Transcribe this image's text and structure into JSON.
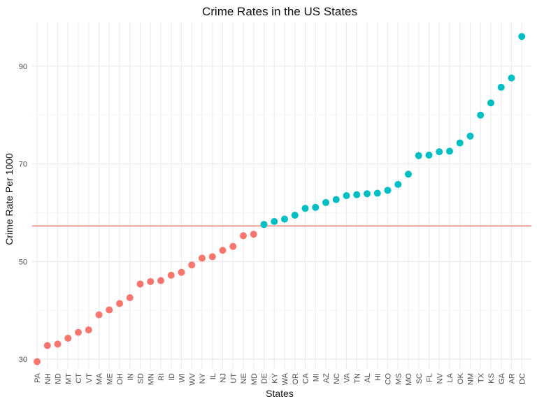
{
  "chart_data": {
    "type": "scatter",
    "title": "Crime Rates in the US States",
    "xlabel": "States",
    "ylabel": "Crime Rate Per 1000",
    "ylim": [
      28,
      99
    ],
    "yticks": [
      30,
      50,
      70,
      90
    ],
    "grid": true,
    "legend": "none",
    "reference_line": {
      "y": 57.3,
      "color": "#F8766D"
    },
    "colors": {
      "below": "#F8766D",
      "above": "#00BFC4"
    },
    "points": [
      {
        "state": "PA",
        "value": 29.5,
        "group": "below"
      },
      {
        "state": "NH",
        "value": 32.8,
        "group": "below"
      },
      {
        "state": "ND",
        "value": 33.1,
        "group": "below"
      },
      {
        "state": "MT",
        "value": 34.3,
        "group": "below"
      },
      {
        "state": "CT",
        "value": 35.5,
        "group": "below"
      },
      {
        "state": "VT",
        "value": 36.0,
        "group": "below"
      },
      {
        "state": "MA",
        "value": 39.1,
        "group": "below"
      },
      {
        "state": "ME",
        "value": 40.1,
        "group": "below"
      },
      {
        "state": "OH",
        "value": 41.4,
        "group": "below"
      },
      {
        "state": "IN",
        "value": 42.6,
        "group": "below"
      },
      {
        "state": "SD",
        "value": 45.4,
        "group": "below"
      },
      {
        "state": "MN",
        "value": 45.9,
        "group": "below"
      },
      {
        "state": "RI",
        "value": 46.1,
        "group": "below"
      },
      {
        "state": "ID",
        "value": 47.2,
        "group": "below"
      },
      {
        "state": "WI",
        "value": 47.8,
        "group": "below"
      },
      {
        "state": "WV",
        "value": 49.3,
        "group": "below"
      },
      {
        "state": "NY",
        "value": 50.7,
        "group": "below"
      },
      {
        "state": "IL",
        "value": 51.0,
        "group": "below"
      },
      {
        "state": "NJ",
        "value": 52.3,
        "group": "below"
      },
      {
        "state": "UT",
        "value": 53.1,
        "group": "below"
      },
      {
        "state": "NE",
        "value": 55.3,
        "group": "below"
      },
      {
        "state": "MD",
        "value": 55.6,
        "group": "below"
      },
      {
        "state": "DE",
        "value": 57.6,
        "group": "above"
      },
      {
        "state": "KY",
        "value": 58.2,
        "group": "above"
      },
      {
        "state": "WA",
        "value": 58.7,
        "group": "above"
      },
      {
        "state": "OR",
        "value": 59.5,
        "group": "above"
      },
      {
        "state": "CA",
        "value": 60.9,
        "group": "above"
      },
      {
        "state": "MI",
        "value": 61.1,
        "group": "above"
      },
      {
        "state": "AZ",
        "value": 62.1,
        "group": "above"
      },
      {
        "state": "NC",
        "value": 62.7,
        "group": "above"
      },
      {
        "state": "VA",
        "value": 63.5,
        "group": "above"
      },
      {
        "state": "TN",
        "value": 63.7,
        "group": "above"
      },
      {
        "state": "AL",
        "value": 63.9,
        "group": "above"
      },
      {
        "state": "HI",
        "value": 64.0,
        "group": "above"
      },
      {
        "state": "CO",
        "value": 64.6,
        "group": "above"
      },
      {
        "state": "MS",
        "value": 65.8,
        "group": "above"
      },
      {
        "state": "MO",
        "value": 67.9,
        "group": "above"
      },
      {
        "state": "SC",
        "value": 71.7,
        "group": "above"
      },
      {
        "state": "FL",
        "value": 71.8,
        "group": "above"
      },
      {
        "state": "NV",
        "value": 72.5,
        "group": "above"
      },
      {
        "state": "LA",
        "value": 72.6,
        "group": "above"
      },
      {
        "state": "OK",
        "value": 74.3,
        "group": "above"
      },
      {
        "state": "NM",
        "value": 75.7,
        "group": "above"
      },
      {
        "state": "TX",
        "value": 80.0,
        "group": "above"
      },
      {
        "state": "KS",
        "value": 82.5,
        "group": "above"
      },
      {
        "state": "GA",
        "value": 85.7,
        "group": "above"
      },
      {
        "state": "AR",
        "value": 87.6,
        "group": "above"
      },
      {
        "state": "DC",
        "value": 96.1,
        "group": "above"
      }
    ]
  }
}
